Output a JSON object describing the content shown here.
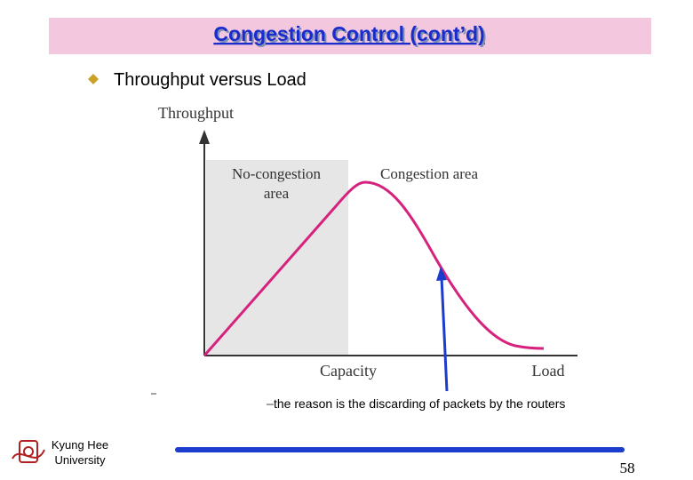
{
  "header": {
    "title": "Congestion Control (cont’d)"
  },
  "bullet": "Throughput versus Load",
  "diagram": {
    "y_axis_label": "Throughput",
    "x_axis_label": "Load",
    "capacity_label": "Capacity",
    "no_congestion_label": [
      "No-congestion",
      "area"
    ],
    "congestion_label": "Congestion area"
  },
  "note": "the reason is the discarding of packets by the routers",
  "footer": {
    "logo_text": [
      "Kyung Hee",
      "University"
    ],
    "page_number": "58"
  }
}
